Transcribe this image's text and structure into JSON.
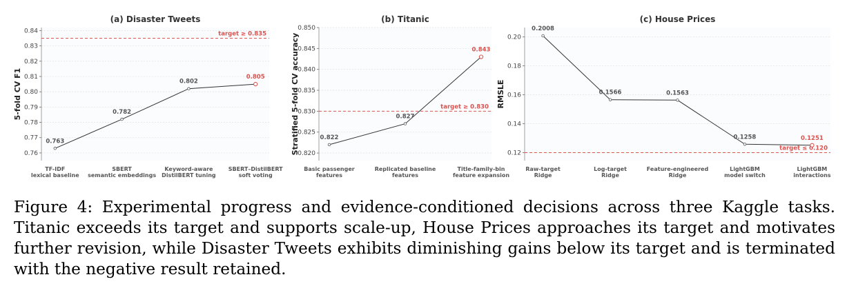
{
  "chart_data": [
    {
      "type": "line",
      "title": "(a) Disaster Tweets",
      "ylabel": "5-fold CV F1",
      "categories": [
        [
          "TF-IDF",
          "lexical baseline"
        ],
        [
          "SBERT",
          "semantic embeddings"
        ],
        [
          "Keyword-aware",
          "DistilBERT tuning"
        ],
        [
          "SBERT–DistilBERT",
          "soft voting"
        ]
      ],
      "values": [
        0.763,
        0.782,
        0.802,
        0.805
      ],
      "value_labels": [
        "0.763",
        "0.782",
        "0.802",
        "0.805"
      ],
      "highlight_index": 3,
      "target": 0.835,
      "target_label": "target ≥ 0.835",
      "ylim": [
        0.755,
        0.842
      ],
      "yticks": [
        0.76,
        0.77,
        0.78,
        0.79,
        0.8,
        0.81,
        0.82,
        0.83,
        0.84
      ],
      "ytick_labels": [
        "0.76",
        "0.77",
        "0.78",
        "0.79",
        "0.80",
        "0.81",
        "0.82",
        "0.83",
        "0.84"
      ],
      "grid": true
    },
    {
      "type": "line",
      "title": "(b) Titanic",
      "ylabel": "Stratified 5-fold CV accuracy",
      "categories": [
        [
          "Basic passenger",
          "features"
        ],
        [
          "Replicated baseline",
          "features"
        ],
        [
          "Title-family-bin",
          "feature expansion"
        ]
      ],
      "values": [
        0.822,
        0.827,
        0.843
      ],
      "value_labels": [
        "0.822",
        "0.827",
        "0.843"
      ],
      "highlight_index": 2,
      "target": 0.83,
      "target_label": "target ≥ 0.830",
      "ylim": [
        0.8182,
        0.85
      ],
      "yticks": [
        0.82,
        0.825,
        0.83,
        0.835,
        0.84,
        0.845,
        0.85
      ],
      "ytick_labels": [
        "0.820",
        "0.825",
        "0.830",
        "0.835",
        "0.840",
        "0.845",
        "0.850"
      ],
      "grid": true
    },
    {
      "type": "line",
      "title": "(c) House Prices",
      "ylabel": "RMSLE",
      "categories": [
        [
          "Raw-target",
          "Ridge"
        ],
        [
          "Log-target",
          "Ridge"
        ],
        [
          "Feature-engineered",
          "Ridge"
        ],
        [
          "LightGBM",
          "model switch"
        ],
        [
          "LightGBM",
          "interactions"
        ]
      ],
      "values": [
        0.2008,
        0.1566,
        0.1563,
        0.1258,
        0.1251
      ],
      "value_labels": [
        "0.2008",
        "0.1566",
        "0.1563",
        "0.1258",
        "0.1251"
      ],
      "highlight_index": 4,
      "target": 0.12,
      "target_label": "target ≤ 0.120",
      "ylim": [
        0.1145,
        0.2065
      ],
      "yticks": [
        0.12,
        0.14,
        0.16,
        0.18,
        0.2
      ],
      "ytick_labels": [
        "0.12",
        "0.14",
        "0.16",
        "0.18",
        "0.20"
      ],
      "grid": true
    }
  ],
  "colors": {
    "line": "#333333",
    "target": "#d9534f",
    "highlight": "#d9534f",
    "grid": "#e4e4e4",
    "point_edge": "#555555"
  },
  "caption": "Figure 4: Experimental progress and evidence-conditioned decisions across three Kaggle tasks. Titanic exceeds its target and supports scale-up, House Prices approaches its target and motivates further revision, while Disaster Tweets exhibits diminishing gains below its target and is terminated with the negative result retained."
}
